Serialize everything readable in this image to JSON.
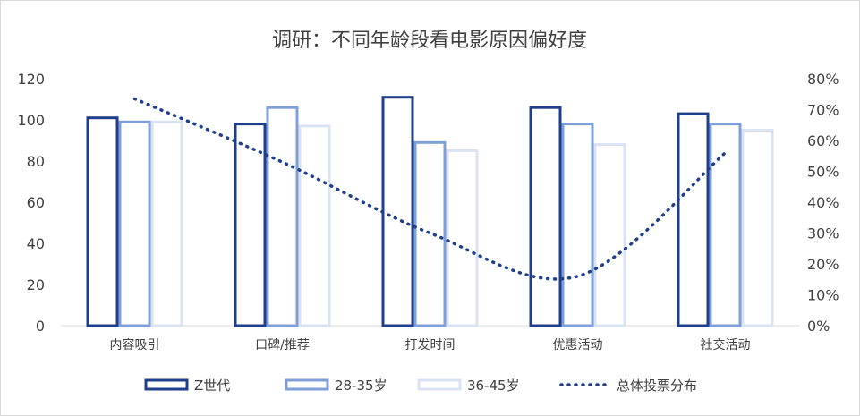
{
  "chart_data": {
    "type": "bar",
    "title": "调研：不同年龄段看电影原因偏好度",
    "categories": [
      "内容吸引",
      "口碑/推荐",
      "打发时间",
      "优惠活动",
      "社交活动"
    ],
    "series": [
      {
        "name": "Z世代",
        "values": [
          101,
          98,
          111,
          106,
          103
        ],
        "color": "#1f3f8c",
        "fill": "#ffffff"
      },
      {
        "name": "28-35岁",
        "values": [
          99,
          106,
          89,
          98,
          98
        ],
        "color": "#7f9fd8",
        "fill": "#ffffff"
      },
      {
        "name": "36-45岁",
        "values": [
          99,
          97,
          85,
          88,
          95
        ],
        "color": "#dbe3f3",
        "fill": "#ffffff"
      }
    ],
    "line_series": {
      "name": "总体投票分布",
      "values": [
        73.5,
        53,
        30,
        16,
        56
      ],
      "color": "#1f3f8c",
      "axis": "right",
      "style": "dotted"
    },
    "ylim": [
      0,
      120
    ],
    "y_ticks": [
      "0",
      "20",
      "40",
      "60",
      "80",
      "100",
      "120"
    ],
    "y2lim": [
      0,
      80
    ],
    "y2_ticks": [
      "0%",
      "10%",
      "20%",
      "30%",
      "40%",
      "50%",
      "60%",
      "70%",
      "80%"
    ],
    "grid": false,
    "legend_position": "bottom"
  }
}
